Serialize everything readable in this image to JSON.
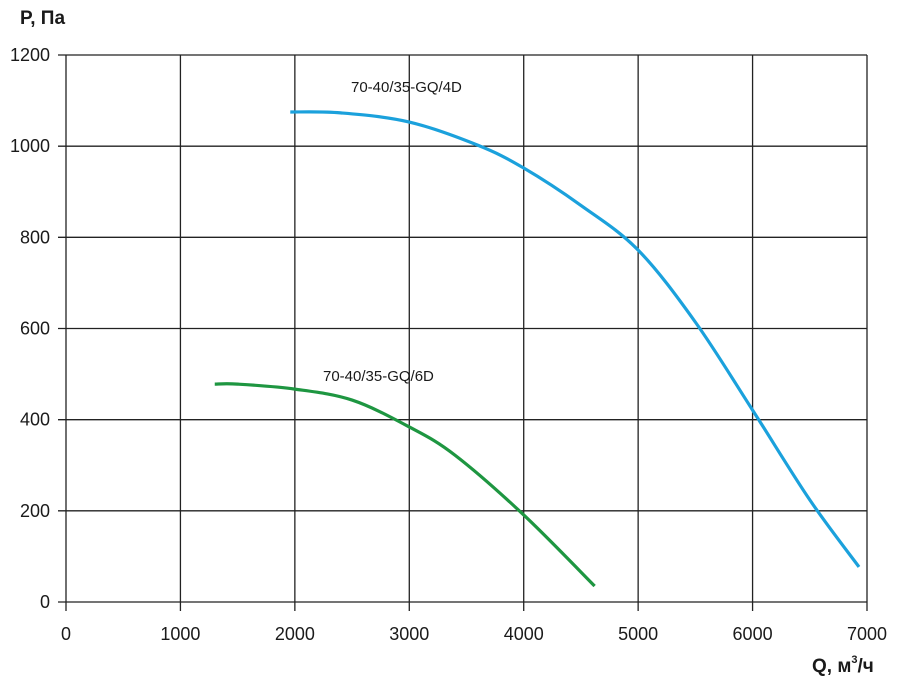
{
  "chart_data": {
    "type": "line",
    "title": "",
    "xlabel": "Q, м³/ч",
    "xlabel_main": "Q, м",
    "xlabel_sup": "3",
    "xlabel_tail": "/ч",
    "ylabel": "P, Па",
    "xlim": [
      0,
      7000
    ],
    "ylim": [
      0,
      1200
    ],
    "grid": true,
    "x_ticks": [
      "0",
      "1000",
      "2000",
      "3000",
      "4000",
      "5000",
      "6000",
      "7000"
    ],
    "y_ticks": [
      "0",
      "200",
      "400",
      "600",
      "800",
      "1000",
      "1200"
    ],
    "series": [
      {
        "name": "70-40/35-GQ/4D",
        "color": "#1ba1dc",
        "x": [
          1960,
          2400,
          3000,
          3600,
          4000,
          4500,
          5000,
          5500,
          6000,
          6500,
          6930
        ],
        "y": [
          1075,
          1073,
          1053,
          1002,
          952,
          870,
          772,
          614,
          421,
          224,
          77
        ]
      },
      {
        "name": "70-40/35-GQ/6D",
        "color": "#1e9641",
        "x": [
          1300,
          1500,
          2000,
          2500,
          3000,
          3400,
          4000,
          4620
        ],
        "y": [
          478,
          478,
          467,
          443,
          384,
          322,
          191,
          35
        ]
      }
    ]
  }
}
